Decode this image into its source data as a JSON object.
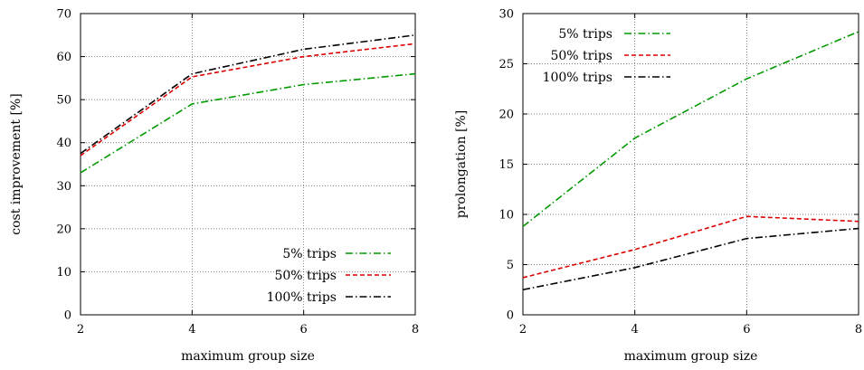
{
  "chart_data": [
    {
      "type": "line",
      "xlabel": "maximum group size",
      "ylabel": "cost improvement [%]",
      "x": [
        2,
        4,
        6,
        8
      ],
      "xlim": [
        2,
        8
      ],
      "ylim": [
        0,
        70
      ],
      "xticks": [
        2,
        4,
        6,
        8
      ],
      "yticks": [
        0,
        10,
        20,
        30,
        40,
        50,
        60,
        70
      ],
      "grid": true,
      "legend_position": "bottom-right",
      "series": [
        {
          "name": "5% trips",
          "values": [
            33,
            49,
            53.5,
            56
          ],
          "color": "#009900",
          "dash": "dash-dot"
        },
        {
          "name": "50% trips",
          "values": [
            37,
            55.3,
            60,
            63
          ],
          "color": "#dd0000",
          "dash": "dashed"
        },
        {
          "name": "100% trips",
          "values": [
            37.5,
            56,
            61.7,
            65
          ],
          "color": "#000000",
          "dash": "dash-dot"
        }
      ]
    },
    {
      "type": "line",
      "xlabel": "maximum group size",
      "ylabel": "prolongation [%]",
      "x": [
        2,
        4,
        6,
        8
      ],
      "xlim": [
        2,
        8
      ],
      "ylim": [
        0,
        30
      ],
      "xticks": [
        2,
        4,
        6,
        8
      ],
      "yticks": [
        0,
        5,
        10,
        15,
        20,
        25,
        30
      ],
      "grid": true,
      "legend_position": "top-left",
      "series": [
        {
          "name": "5% trips",
          "values": [
            8.8,
            17.6,
            23.5,
            28.2
          ],
          "color": "#009900",
          "dash": "dash-dot"
        },
        {
          "name": "50% trips",
          "values": [
            3.7,
            6.5,
            9.8,
            9.3
          ],
          "color": "#dd0000",
          "dash": "dashed"
        },
        {
          "name": "100% trips",
          "values": [
            2.5,
            4.7,
            7.6,
            8.6
          ],
          "color": "#000000",
          "dash": "dash-dot"
        }
      ]
    }
  ]
}
